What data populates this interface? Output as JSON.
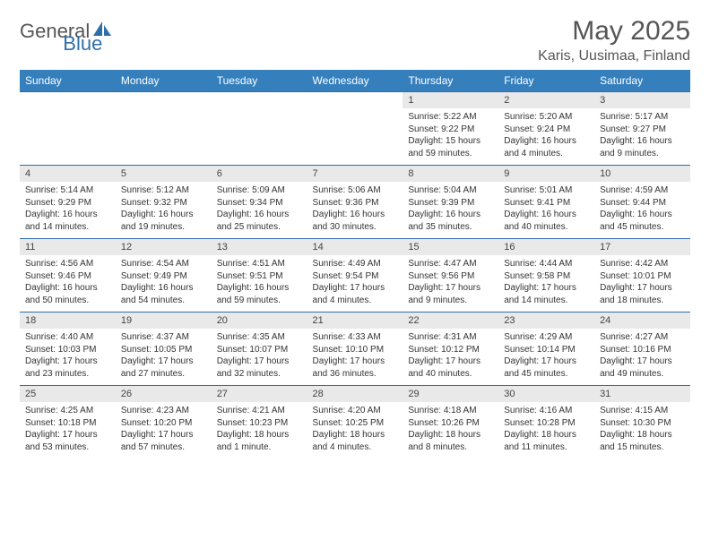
{
  "logo": {
    "general": "General",
    "blue": "Blue"
  },
  "title": "May 2025",
  "subtitle": "Karis, Uusimaa, Finland",
  "colors": {
    "header_bg": "#357fbd",
    "header_text": "#ffffff",
    "daynum_bg": "#e9e9e9",
    "border": "#2f6fa8",
    "text": "#333333",
    "logo_gray": "#555555",
    "logo_blue": "#2f6fa8",
    "background": "#ffffff"
  },
  "typography": {
    "title_fontsize": 30,
    "subtitle_fontsize": 16,
    "weekday_fontsize": 12,
    "daynum_fontsize": 11,
    "detail_fontsize": 10,
    "font_family": "Arial"
  },
  "weekdays": [
    "Sunday",
    "Monday",
    "Tuesday",
    "Wednesday",
    "Thursday",
    "Friday",
    "Saturday"
  ],
  "labels": {
    "sunrise": "Sunrise:",
    "sunset": "Sunset:",
    "daylight": "Daylight:"
  },
  "weeks": [
    [
      null,
      null,
      null,
      null,
      {
        "day": "1",
        "sunrise": "5:22 AM",
        "sunset": "9:22 PM",
        "daylight": "15 hours and 59 minutes."
      },
      {
        "day": "2",
        "sunrise": "5:20 AM",
        "sunset": "9:24 PM",
        "daylight": "16 hours and 4 minutes."
      },
      {
        "day": "3",
        "sunrise": "5:17 AM",
        "sunset": "9:27 PM",
        "daylight": "16 hours and 9 minutes."
      }
    ],
    [
      {
        "day": "4",
        "sunrise": "5:14 AM",
        "sunset": "9:29 PM",
        "daylight": "16 hours and 14 minutes."
      },
      {
        "day": "5",
        "sunrise": "5:12 AM",
        "sunset": "9:32 PM",
        "daylight": "16 hours and 19 minutes."
      },
      {
        "day": "6",
        "sunrise": "5:09 AM",
        "sunset": "9:34 PM",
        "daylight": "16 hours and 25 minutes."
      },
      {
        "day": "7",
        "sunrise": "5:06 AM",
        "sunset": "9:36 PM",
        "daylight": "16 hours and 30 minutes."
      },
      {
        "day": "8",
        "sunrise": "5:04 AM",
        "sunset": "9:39 PM",
        "daylight": "16 hours and 35 minutes."
      },
      {
        "day": "9",
        "sunrise": "5:01 AM",
        "sunset": "9:41 PM",
        "daylight": "16 hours and 40 minutes."
      },
      {
        "day": "10",
        "sunrise": "4:59 AM",
        "sunset": "9:44 PM",
        "daylight": "16 hours and 45 minutes."
      }
    ],
    [
      {
        "day": "11",
        "sunrise": "4:56 AM",
        "sunset": "9:46 PM",
        "daylight": "16 hours and 50 minutes."
      },
      {
        "day": "12",
        "sunrise": "4:54 AM",
        "sunset": "9:49 PM",
        "daylight": "16 hours and 54 minutes."
      },
      {
        "day": "13",
        "sunrise": "4:51 AM",
        "sunset": "9:51 PM",
        "daylight": "16 hours and 59 minutes."
      },
      {
        "day": "14",
        "sunrise": "4:49 AM",
        "sunset": "9:54 PM",
        "daylight": "17 hours and 4 minutes."
      },
      {
        "day": "15",
        "sunrise": "4:47 AM",
        "sunset": "9:56 PM",
        "daylight": "17 hours and 9 minutes."
      },
      {
        "day": "16",
        "sunrise": "4:44 AM",
        "sunset": "9:58 PM",
        "daylight": "17 hours and 14 minutes."
      },
      {
        "day": "17",
        "sunrise": "4:42 AM",
        "sunset": "10:01 PM",
        "daylight": "17 hours and 18 minutes."
      }
    ],
    [
      {
        "day": "18",
        "sunrise": "4:40 AM",
        "sunset": "10:03 PM",
        "daylight": "17 hours and 23 minutes."
      },
      {
        "day": "19",
        "sunrise": "4:37 AM",
        "sunset": "10:05 PM",
        "daylight": "17 hours and 27 minutes."
      },
      {
        "day": "20",
        "sunrise": "4:35 AM",
        "sunset": "10:07 PM",
        "daylight": "17 hours and 32 minutes."
      },
      {
        "day": "21",
        "sunrise": "4:33 AM",
        "sunset": "10:10 PM",
        "daylight": "17 hours and 36 minutes."
      },
      {
        "day": "22",
        "sunrise": "4:31 AM",
        "sunset": "10:12 PM",
        "daylight": "17 hours and 40 minutes."
      },
      {
        "day": "23",
        "sunrise": "4:29 AM",
        "sunset": "10:14 PM",
        "daylight": "17 hours and 45 minutes."
      },
      {
        "day": "24",
        "sunrise": "4:27 AM",
        "sunset": "10:16 PM",
        "daylight": "17 hours and 49 minutes."
      }
    ],
    [
      {
        "day": "25",
        "sunrise": "4:25 AM",
        "sunset": "10:18 PM",
        "daylight": "17 hours and 53 minutes."
      },
      {
        "day": "26",
        "sunrise": "4:23 AM",
        "sunset": "10:20 PM",
        "daylight": "17 hours and 57 minutes."
      },
      {
        "day": "27",
        "sunrise": "4:21 AM",
        "sunset": "10:23 PM",
        "daylight": "18 hours and 1 minute."
      },
      {
        "day": "28",
        "sunrise": "4:20 AM",
        "sunset": "10:25 PM",
        "daylight": "18 hours and 4 minutes."
      },
      {
        "day": "29",
        "sunrise": "4:18 AM",
        "sunset": "10:26 PM",
        "daylight": "18 hours and 8 minutes."
      },
      {
        "day": "30",
        "sunrise": "4:16 AM",
        "sunset": "10:28 PM",
        "daylight": "18 hours and 11 minutes."
      },
      {
        "day": "31",
        "sunrise": "4:15 AM",
        "sunset": "10:30 PM",
        "daylight": "18 hours and 15 minutes."
      }
    ]
  ]
}
